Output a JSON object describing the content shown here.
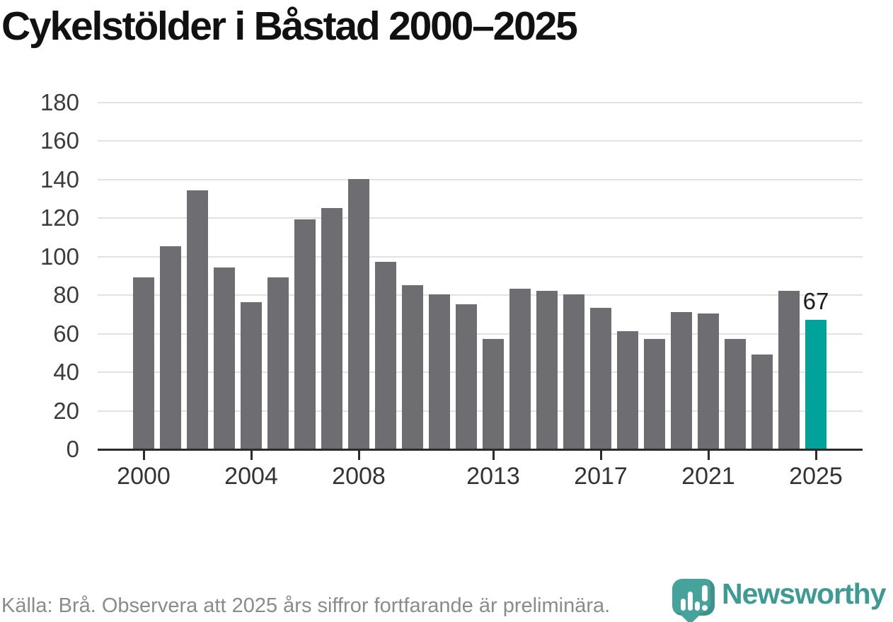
{
  "title": "Cykelstölder i Båstad 2000–2025",
  "chart_data": {
    "type": "bar",
    "title": "Cykelstölder i Båstad 2000–2025",
    "categories": [
      "2000",
      "2001",
      "2002",
      "2003",
      "2004",
      "2005",
      "2006",
      "2007",
      "2008",
      "2009",
      "2010",
      "2011",
      "2012",
      "2013",
      "2014",
      "2015",
      "2016",
      "2017",
      "2018",
      "2019",
      "2020",
      "2021",
      "2022",
      "2023",
      "2024",
      "2025"
    ],
    "values": [
      89,
      105,
      134,
      94,
      76,
      89,
      119,
      125,
      140,
      97,
      85,
      80,
      75,
      57,
      83,
      82,
      80,
      73,
      61,
      57,
      71,
      70,
      57,
      49,
      82,
      67
    ],
    "highlight": {
      "index": 25,
      "label": "67"
    },
    "xlabel": "",
    "ylabel": "",
    "ylim": [
      0,
      180
    ],
    "yticks": [
      0,
      20,
      40,
      60,
      80,
      100,
      120,
      140,
      160,
      180
    ],
    "xtick_years": [
      "2000",
      "2004",
      "2008",
      "2013",
      "2017",
      "2021",
      "2025"
    ],
    "grid": "horizontal",
    "legend": "none"
  },
  "colors": {
    "bar": "#6E6D71",
    "highlight": "#00A29A",
    "gridline": "#E2E2E2",
    "axis": "#2B2B2B",
    "axis_label": "#3C3C3C",
    "title": "#111111",
    "footer_text": "#8B8B8B",
    "logo_text": "#3D9B94",
    "logo_icon": "#46A39C"
  },
  "footer": {
    "source_text": "Källa: Brå. Observera att 2025 års siffror fortfarande är preliminära."
  },
  "branding": {
    "name": "Newsworthy",
    "icon": "newsworthy-pin-barchart-icon"
  }
}
